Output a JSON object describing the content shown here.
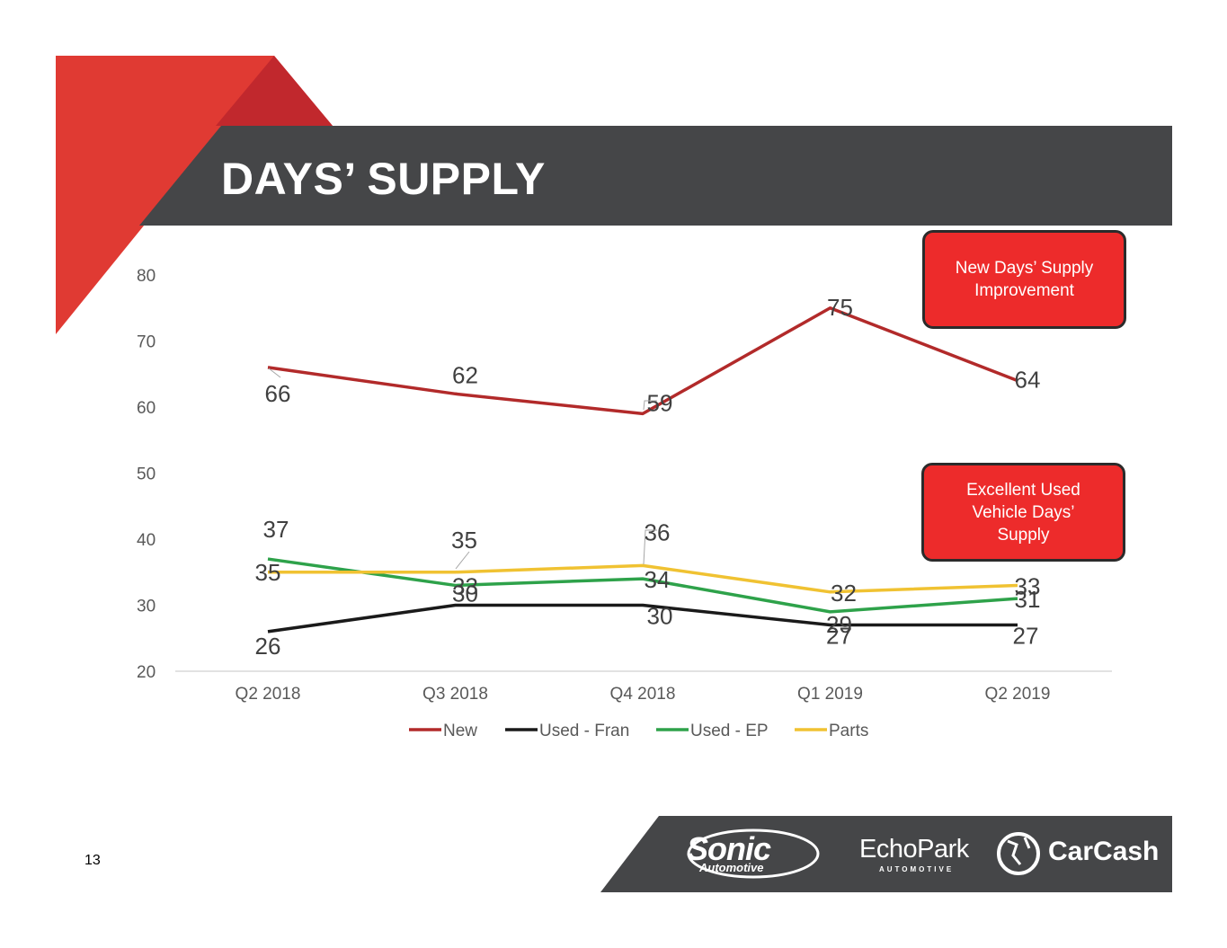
{
  "slide": {
    "title": "DAYS’ SUPPLY",
    "page_number": "13"
  },
  "colors": {
    "accent_red": "#e03a33",
    "dark_band": "#454648",
    "callout_red": "#ed2b2b"
  },
  "callouts": [
    {
      "lines": [
        "New Days’ Supply",
        "Improvement"
      ]
    },
    {
      "lines": [
        "Excellent Used",
        "Vehicle Days’",
        "Supply"
      ]
    }
  ],
  "footer": {
    "logos": {
      "sonic": "Sonic",
      "sonic_sub": "Automotive",
      "echopark": "EchoPark",
      "echopark_sub": "AUTOMOTIVE",
      "carcash": "CarCash"
    }
  },
  "chart_data": {
    "type": "line",
    "categories": [
      "Q2 2018",
      "Q3 2018",
      "Q4 2018",
      "Q1 2019",
      "Q2 2019"
    ],
    "ylim": [
      20,
      80
    ],
    "yticks": [
      20,
      30,
      40,
      50,
      60,
      70,
      80
    ],
    "grid": false,
    "legend_position": "bottom",
    "series": [
      {
        "name": "New",
        "color": "#b22a2a",
        "values": [
          66,
          62,
          59,
          75,
          64
        ]
      },
      {
        "name": "Used - Fran",
        "color": "#1a1a1a",
        "values": [
          26,
          30,
          30,
          27,
          27
        ]
      },
      {
        "name": "Used - EP",
        "color": "#2ea24a",
        "values": [
          37,
          33,
          34,
          29,
          31
        ]
      },
      {
        "name": "Parts",
        "color": "#f0c232",
        "values": [
          35,
          35,
          36,
          32,
          33
        ]
      }
    ]
  }
}
